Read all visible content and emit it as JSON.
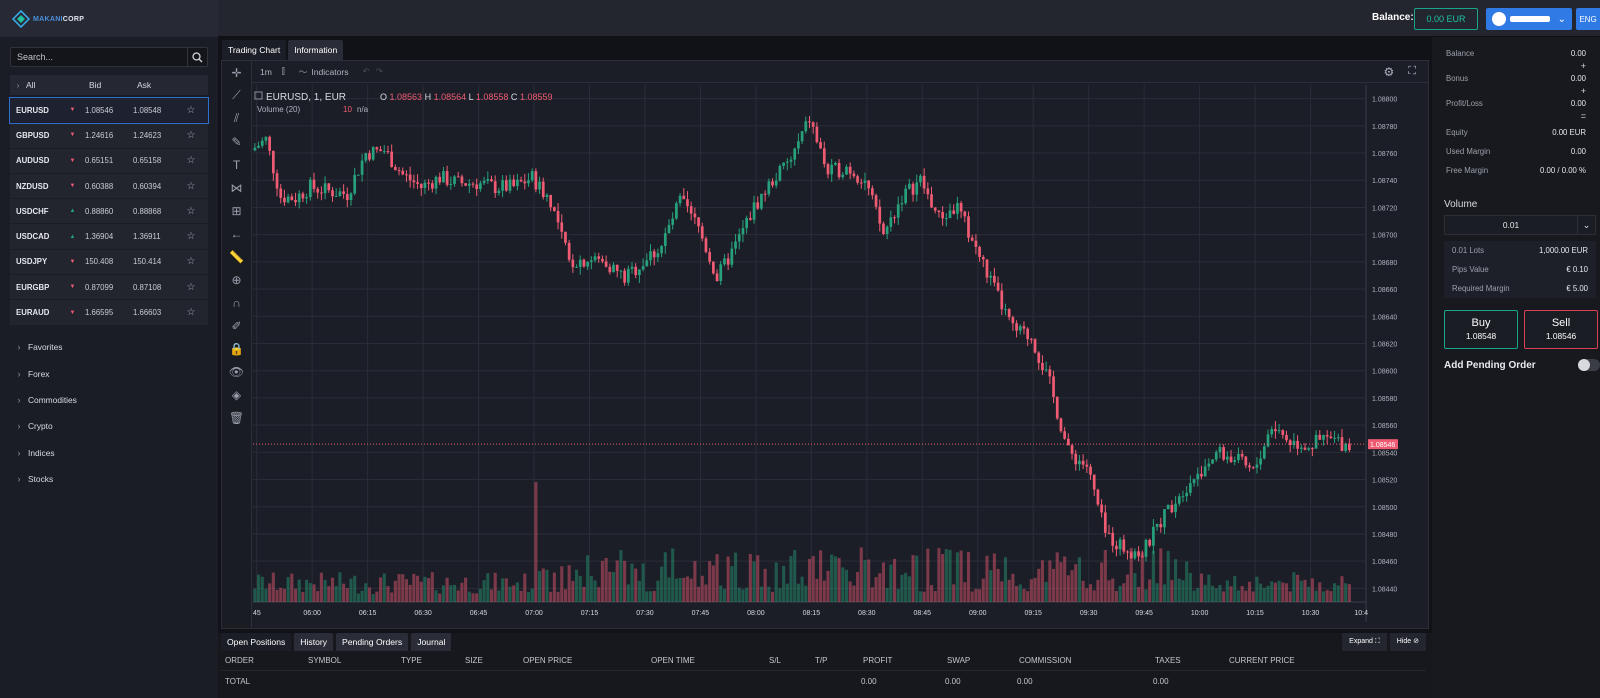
{
  "brand": {
    "part1": "MAKANI",
    "part2": "CORP"
  },
  "header": {
    "balance_label": "Balance:",
    "balance_value": "0.00 EUR",
    "lang": "ENG"
  },
  "sidebar": {
    "search_placeholder": "Search...",
    "columns": {
      "all": "All",
      "bid": "Bid",
      "ask": "Ask"
    },
    "symbols": [
      {
        "name": "EURUSD",
        "dir": "down",
        "bid": "1.08546",
        "ask": "1.08548",
        "selected": true
      },
      {
        "name": "GBPUSD",
        "dir": "down",
        "bid": "1.24616",
        "ask": "1.24623"
      },
      {
        "name": "AUDUSD",
        "dir": "down",
        "bid": "0.65151",
        "ask": "0.65158"
      },
      {
        "name": "NZDUSD",
        "dir": "down",
        "bid": "0.60388",
        "ask": "0.60394"
      },
      {
        "name": "USDCHF",
        "dir": "up",
        "bid": "0.88860",
        "ask": "0.88868"
      },
      {
        "name": "USDCAD",
        "dir": "up",
        "bid": "1.36904",
        "ask": "1.36911"
      },
      {
        "name": "USDJPY",
        "dir": "down",
        "bid": "150.408",
        "ask": "150.414"
      },
      {
        "name": "EURGBP",
        "dir": "down",
        "bid": "0.87099",
        "ask": "0.87108"
      },
      {
        "name": "EURAUD",
        "dir": "down",
        "bid": "1.66595",
        "ask": "1.66603"
      }
    ],
    "categories": [
      "Favorites",
      "Forex",
      "Commodities",
      "Crypto",
      "Indices",
      "Stocks"
    ]
  },
  "chart_tabs": [
    "Trading Chart",
    "Information"
  ],
  "chart_toolbar": {
    "interval": "1m",
    "indicators": "Indicators"
  },
  "chart_legend": {
    "symbol": "EURUSD, 1, EUR",
    "o_label": "O",
    "o": "1.08563",
    "h_label": "H",
    "h": "1.08564",
    "l_label": "L",
    "l": "1.08558",
    "c_label": "C",
    "c": "1.08559",
    "volume": "Volume (20)",
    "vol_len": "10",
    "vol_val": "n/a"
  },
  "colors": {
    "up": "#26a17b",
    "down": "#ef5b73",
    "accent": "#2f7ae5",
    "buy": "#1aa58a",
    "sell": "#d94155"
  },
  "chart_data": {
    "type": "candlestick",
    "symbol": "EURUSD",
    "interval": "1m",
    "ylim": [
      1.0843,
      1.0881
    ],
    "y_ticks": [
      "1.08800",
      "1.08780",
      "1.08760",
      "1.08740",
      "1.08720",
      "1.08700",
      "1.08680",
      "1.08660",
      "1.08640",
      "1.08620",
      "1.08600",
      "1.08580",
      "1.08560",
      "1.08540",
      "1.08520",
      "1.08500",
      "1.08480",
      "1.08460",
      "1.08440"
    ],
    "x_ticks": [
      "45",
      "06:00",
      "06:15",
      "06:30",
      "06:45",
      "07:00",
      "07:15",
      "07:30",
      "07:45",
      "08:00",
      "08:15",
      "08:30",
      "08:45",
      "09:00",
      "09:15",
      "09:30",
      "09:45",
      "10:00",
      "10:15",
      "10:30",
      "10:4"
    ],
    "last_price": "1.08546",
    "close_path": [
      [
        "05:44",
        1.08762
      ],
      [
        "05:48",
        1.0877
      ],
      [
        "05:52",
        1.08728
      ],
      [
        "05:56",
        1.08727
      ],
      [
        "06:00",
        1.08735
      ],
      [
        "06:05",
        1.08732
      ],
      [
        "06:10",
        1.0873
      ],
      [
        "06:15",
        1.0876
      ],
      [
        "06:20",
        1.08762
      ],
      [
        "06:25",
        1.08744
      ],
      [
        "06:30",
        1.08735
      ],
      [
        "06:35",
        1.08742
      ],
      [
        "06:40",
        1.08738
      ],
      [
        "06:45",
        1.08738
      ],
      [
        "06:50",
        1.08735
      ],
      [
        "06:55",
        1.08735
      ],
      [
        "07:00",
        1.08742
      ],
      [
        "07:05",
        1.08725
      ],
      [
        "07:10",
        1.0868
      ],
      [
        "07:15",
        1.08682
      ],
      [
        "07:20",
        1.0868
      ],
      [
        "07:25",
        1.08668
      ],
      [
        "07:30",
        1.0868
      ],
      [
        "07:35",
        1.08692
      ],
      [
        "07:40",
        1.08725
      ],
      [
        "07:45",
        1.08705
      ],
      [
        "07:50",
        1.08668
      ],
      [
        "07:55",
        1.08692
      ],
      [
        "08:00",
        1.0872
      ],
      [
        "08:05",
        1.0874
      ],
      [
        "08:10",
        1.08755
      ],
      [
        "08:15",
        1.08785
      ],
      [
        "08:20",
        1.08745
      ],
      [
        "08:25",
        1.0875
      ],
      [
        "08:30",
        1.0874
      ],
      [
        "08:35",
        1.087
      ],
      [
        "08:40",
        1.08728
      ],
      [
        "08:45",
        1.0874
      ],
      [
        "08:50",
        1.08712
      ],
      [
        "08:55",
        1.0872
      ],
      [
        "09:00",
        1.0869
      ],
      [
        "09:05",
        1.0866
      ],
      [
        "09:10",
        1.0863
      ],
      [
        "09:15",
        1.08625
      ],
      [
        "09:20",
        1.0859
      ],
      [
        "09:25",
        1.0854
      ],
      [
        "09:30",
        1.0853
      ],
      [
        "09:35",
        1.0848
      ],
      [
        "09:40",
        1.0847
      ],
      [
        "09:45",
        1.08465
      ],
      [
        "09:50",
        1.0849
      ],
      [
        "09:55",
        1.0851
      ],
      [
        "10:00",
        1.08525
      ],
      [
        "10:05",
        1.0854
      ],
      [
        "10:10",
        1.08535
      ],
      [
        "10:15",
        1.08525
      ],
      [
        "10:20",
        1.0856
      ],
      [
        "10:25",
        1.08548
      ],
      [
        "10:30",
        1.08545
      ],
      [
        "10:35",
        1.0855
      ],
      [
        "10:40",
        1.08546
      ]
    ]
  },
  "bottom": {
    "tabs": [
      "Open Positions",
      "History",
      "Pending Orders",
      "Journal"
    ],
    "expand": "Expand",
    "hide": "Hide",
    "columns": [
      "ORDER",
      "SYMBOL",
      "TYPE",
      "SIZE",
      "OPEN PRICE",
      "OPEN TIME",
      "S/L",
      "T/P",
      "PROFIT",
      "SWAP",
      "COMMISSION",
      "TAXES",
      "CURRENT PRICE"
    ],
    "total_label": "TOTAL",
    "profit": "0.00",
    "swap": "0.00",
    "commission": "0.00",
    "taxes": "0.00"
  },
  "account": {
    "balance_l": "Balance",
    "balance_v": "0.00",
    "bonus_l": "Bonus",
    "bonus_v": "0.00",
    "pl_l": "Profit/Loss",
    "pl_v": "0.00",
    "equity_l": "Equity",
    "equity_v": "0.00 EUR",
    "used_l": "Used Margin",
    "used_v": "0.00",
    "free_l": "Free Margin",
    "free_v": "0.00 / 0.00 %",
    "op_plus": "+",
    "op_eq": "="
  },
  "order": {
    "volume_label": "Volume",
    "volume_value": "0.01",
    "lots_l": "0.01 Lots",
    "lots_v": "1,000.00 EUR",
    "pip_l": "Pips Value",
    "pip_v": "€ 0.10",
    "req_l": "Required Margin",
    "req_v": "€ 5.00",
    "buy_label": "Buy",
    "buy_price": "1.08548",
    "sell_label": "Sell",
    "sell_price": "1.08546",
    "pending_label": "Add Pending Order"
  }
}
